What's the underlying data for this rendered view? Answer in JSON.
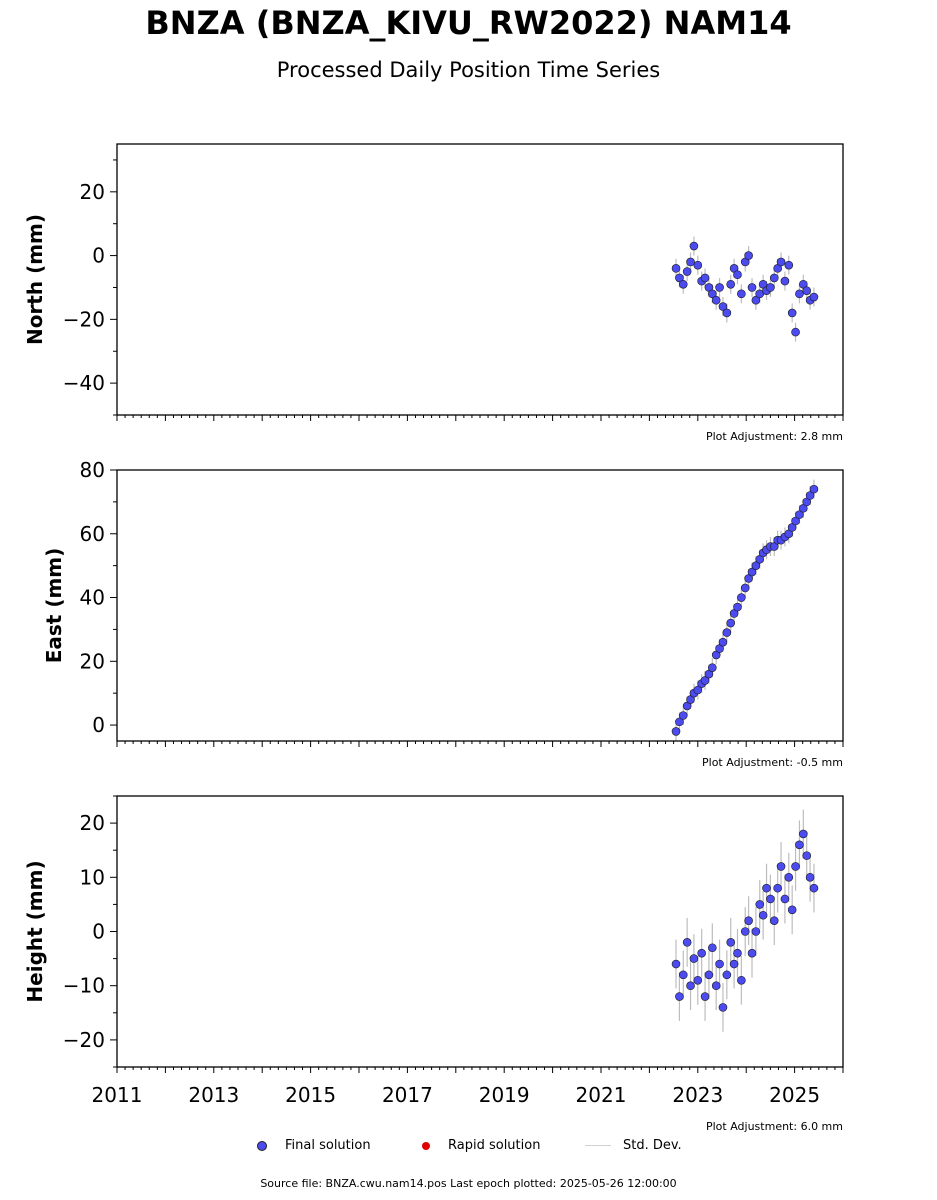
{
  "title": "BNZA (BNZA_KIVU_RW2022) NAM14",
  "subtitle": "Processed Daily Position Time Series",
  "legend": {
    "final_label": "Final solution",
    "rapid_label": "Rapid solution",
    "std_label": "Std. Dev.",
    "final_color": "#4b4bf0",
    "rapid_color": "#e00000",
    "std_color": "#d0d0d0"
  },
  "source": "Source file: BNZA.cwu.nam14.pos  Last epoch plotted: 2025-05-26 12:00:00",
  "chart_data": [
    {
      "type": "scatter",
      "ylabel": "North (mm)",
      "adjustment": "Plot Adjustment: 2.8 mm",
      "xlim": [
        2011.0,
        2026.0
      ],
      "ylim": [
        -50,
        35
      ],
      "yticks": [
        20,
        0,
        -20,
        -40
      ],
      "ytick_labels": [
        "20",
        "0",
        "−20",
        "−40"
      ],
      "xtick_labels": [],
      "series": [
        {
          "x": [
            2022.55,
            2022.62,
            2022.7,
            2022.78,
            2022.85,
            2022.92,
            2023.0,
            2023.08,
            2023.15,
            2023.23,
            2023.3,
            2023.38,
            2023.45,
            2023.52,
            2023.6,
            2023.68,
            2023.75,
            2023.82,
            2023.9,
            2023.98,
            2024.05,
            2024.12,
            2024.2,
            2024.28,
            2024.35,
            2024.42,
            2024.5,
            2024.58,
            2024.65,
            2024.72,
            2024.8,
            2024.88,
            2024.95,
            2025.02,
            2025.1,
            2025.18,
            2025.25,
            2025.32,
            2025.4
          ],
          "y": [
            -4,
            -7,
            -9,
            -5,
            -2,
            3,
            -3,
            -8,
            -7,
            -10,
            -12,
            -14,
            -10,
            -16,
            -18,
            -9,
            -4,
            -6,
            -12,
            -2,
            0,
            -10,
            -14,
            -12,
            -9,
            -11,
            -10,
            -7,
            -4,
            -2,
            -8,
            -3,
            -18,
            -24,
            -12,
            -9,
            -11,
            -14,
            -13
          ]
        }
      ]
    },
    {
      "type": "scatter",
      "ylabel": "East (mm)",
      "adjustment": "Plot Adjustment: -0.5 mm",
      "xlim": [
        2011.0,
        2026.0
      ],
      "ylim": [
        -5,
        80
      ],
      "yticks": [
        80,
        60,
        40,
        20,
        0
      ],
      "ytick_labels": [
        "80",
        "60",
        "40",
        "20",
        "0"
      ],
      "xtick_labels": [],
      "series": [
        {
          "x": [
            2022.55,
            2022.62,
            2022.7,
            2022.78,
            2022.85,
            2022.92,
            2023.0,
            2023.08,
            2023.15,
            2023.23,
            2023.3,
            2023.38,
            2023.45,
            2023.52,
            2023.6,
            2023.68,
            2023.75,
            2023.82,
            2023.9,
            2023.98,
            2024.05,
            2024.12,
            2024.2,
            2024.28,
            2024.35,
            2024.42,
            2024.5,
            2024.58,
            2024.65,
            2024.72,
            2024.8,
            2024.88,
            2024.95,
            2025.02,
            2025.1,
            2025.18,
            2025.25,
            2025.32,
            2025.4
          ],
          "y": [
            -2,
            1,
            3,
            6,
            8,
            10,
            11,
            13,
            14,
            16,
            18,
            22,
            24,
            26,
            29,
            32,
            35,
            37,
            40,
            43,
            46,
            48,
            50,
            52,
            54,
            55,
            56,
            56,
            58,
            58,
            59,
            60,
            62,
            64,
            66,
            68,
            70,
            72,
            74
          ]
        }
      ]
    },
    {
      "type": "scatter",
      "ylabel": "Height (mm)",
      "adjustment": "Plot Adjustment: 6.0 mm",
      "xlim": [
        2011.0,
        2026.0
      ],
      "ylim": [
        -25,
        25
      ],
      "yticks": [
        20,
        10,
        0,
        -10,
        -20
      ],
      "ytick_labels": [
        "20",
        "10",
        "0",
        "−10",
        "−20"
      ],
      "xtick_labels": [
        "2011",
        "2013",
        "2015",
        "2017",
        "2019",
        "2021",
        "2023",
        "2025"
      ],
      "xtick_values": [
        2011,
        2013,
        2015,
        2017,
        2019,
        2021,
        2023,
        2025
      ],
      "series": [
        {
          "x": [
            2022.55,
            2022.62,
            2022.7,
            2022.78,
            2022.85,
            2022.92,
            2023.0,
            2023.08,
            2023.15,
            2023.23,
            2023.3,
            2023.38,
            2023.45,
            2023.52,
            2023.6,
            2023.68,
            2023.75,
            2023.82,
            2023.9,
            2023.98,
            2024.05,
            2024.12,
            2024.2,
            2024.28,
            2024.35,
            2024.42,
            2024.5,
            2024.58,
            2024.65,
            2024.72,
            2024.8,
            2024.88,
            2024.95,
            2025.02,
            2025.1,
            2025.18,
            2025.25,
            2025.32,
            2025.4
          ],
          "y": [
            -6,
            -12,
            -8,
            -2,
            -10,
            -5,
            -9,
            -4,
            -12,
            -8,
            -3,
            -10,
            -6,
            -14,
            -8,
            -2,
            -6,
            -4,
            -9,
            0,
            2,
            -4,
            0,
            5,
            3,
            8,
            6,
            2,
            8,
            12,
            6,
            10,
            4,
            12,
            16,
            18,
            14,
            10,
            8
          ]
        }
      ]
    }
  ]
}
